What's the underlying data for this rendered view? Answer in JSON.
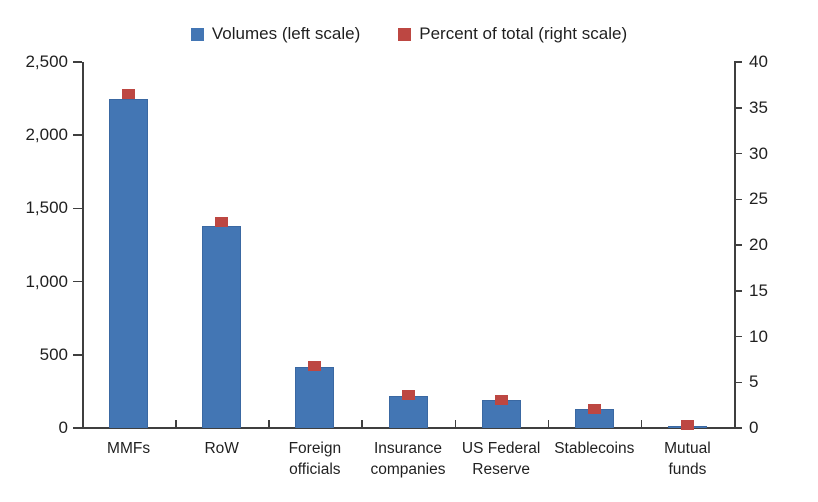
{
  "legend": {
    "items": [
      {
        "label": "Volumes (left scale)",
        "color": "#4376B4"
      },
      {
        "label": "Percent of total (right scale)",
        "color": "#BD4742"
      }
    ]
  },
  "chart_data": {
    "type": "bar",
    "title": "",
    "xlabel": "",
    "ylabel_left": "",
    "ylabel_right": "",
    "grid": false,
    "legend_position": "top-center",
    "categories": [
      "MMFs",
      "RoW",
      "Foreign\nofficials",
      "Insurance\ncompanies",
      "US Federal\nReserve",
      "Stablecoins",
      "Mutual\nfunds"
    ],
    "series": [
      {
        "name": "Volumes (left scale)",
        "type": "bar",
        "axis": "left",
        "color": "#4376B4",
        "edge_color": "#3A68A2",
        "values": [
          2250,
          1380,
          415,
          220,
          190,
          130,
          15
        ]
      },
      {
        "name": "Percent of total (right scale)",
        "type": "square-marker",
        "axis": "right",
        "color": "#BD4742",
        "edge_color": "#A93F3B",
        "values": [
          36.5,
          22.5,
          6.8,
          3.6,
          3.1,
          2.1,
          0.3
        ]
      }
    ],
    "left_axis": {
      "min": 0,
      "max": 2500,
      "step": 500,
      "tick_labels": [
        "0",
        "500",
        "1,000",
        "1,500",
        "2,000",
        "2,500"
      ]
    },
    "right_axis": {
      "min": 0,
      "max": 40,
      "step": 5,
      "tick_labels": [
        "0",
        "5",
        "10",
        "15",
        "20",
        "25",
        "30",
        "35",
        "40"
      ]
    }
  }
}
